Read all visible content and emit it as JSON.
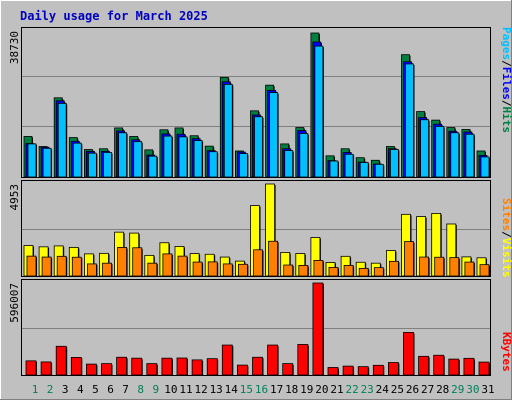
{
  "chart_data": {
    "type": "bar",
    "title": "Daily usage for March 2025",
    "days": [
      "1",
      "2",
      "3",
      "4",
      "5",
      "6",
      "7",
      "8",
      "9",
      "10",
      "11",
      "12",
      "13",
      "14",
      "15",
      "16",
      "17",
      "18",
      "19",
      "20",
      "21",
      "22",
      "23",
      "24",
      "25",
      "26",
      "27",
      "28",
      "29",
      "30",
      "31"
    ],
    "weekend_days": [
      "1",
      "2",
      "8",
      "9",
      "15",
      "16",
      "22",
      "23",
      "29",
      "30"
    ],
    "panels": [
      {
        "name": "traffic",
        "ymax_label": "38730",
        "ymax": 38730,
        "side_labels": [
          "Pages",
          "/",
          "Files",
          "/",
          "Hits"
        ],
        "series": [
          {
            "name": "Hits",
            "color": "#008040",
            "values": [
              10900,
              8200,
              21300,
              10600,
              7400,
              7600,
              13200,
              10900,
              7300,
              12700,
              13200,
              11100,
              8300,
              26800,
              7000,
              17800,
              24700,
              8900,
              13300,
              38730,
              5700,
              7600,
              5200,
              4500,
              8200,
              32900,
              17600,
              15300,
              13300,
              12800,
              7000
            ]
          },
          {
            "name": "Files",
            "color": "#0000FF",
            "values": [
              9000,
              8000,
              20500,
              9600,
              6900,
              6900,
              12400,
              10000,
              5900,
              11600,
              11500,
              10300,
              7100,
              25600,
              6700,
              16700,
              23300,
              7600,
              12500,
              36300,
              4400,
              6600,
              4000,
              3500,
              7600,
              31000,
              16000,
              14200,
              12300,
              12100,
              5800
            ]
          },
          {
            "name": "Pages",
            "color": "#00C0FF",
            "values": [
              8900,
              7700,
              19800,
              9100,
              6400,
              6600,
              11900,
              9500,
              5600,
              11000,
              10800,
              9800,
              6800,
              24900,
              6300,
              16200,
              22700,
              7100,
              11700,
              35200,
              4300,
              6100,
              3900,
              3400,
              7400,
              30400,
              15400,
              13600,
              11900,
              11500,
              5400
            ]
          }
        ]
      },
      {
        "name": "visits",
        "ymax_label": "4953",
        "ymax": 4953,
        "side_labels": [
          "Sites",
          "/",
          "Visits"
        ],
        "series": [
          {
            "name": "Visits",
            "color": "#FFFF00",
            "values": [
              1640,
              1570,
              1620,
              1540,
              1190,
              1220,
              2360,
              2310,
              1110,
              1790,
              1590,
              1210,
              1170,
              1020,
              800,
              3790,
              4953,
              1270,
              1210,
              2070,
              730,
              1060,
              740,
              690,
              1370,
              3320,
              3200,
              3370,
              2800,
              1030,
              980
            ]
          },
          {
            "name": "Sites",
            "color": "#FF8000",
            "values": [
              1070,
              1020,
              1060,
              1010,
              650,
              690,
              1540,
              1520,
              690,
              1190,
              1070,
              750,
              760,
              650,
              630,
              1410,
              1870,
              590,
              570,
              840,
              460,
              570,
              410,
              450,
              790,
              1850,
              1020,
              1010,
              990,
              750,
              610
            ]
          }
        ]
      },
      {
        "name": "volume",
        "ymax_label": "596007",
        "ymax": 596007,
        "side_labels": [
          "KBytes"
        ],
        "series": [
          {
            "name": "KBytes",
            "color": "#FF0000",
            "values": [
              91700,
              84700,
              186000,
              114000,
              70600,
              73800,
              115000,
              109000,
              73800,
              109000,
              110000,
              97900,
              106000,
              194000,
              64100,
              115000,
              194000,
              74000,
              198000,
              596007,
              48700,
              57600,
              54200,
              62900,
              80800,
              276000,
              121000,
              128000,
              103000,
              108000,
              83700
            ]
          }
        ]
      }
    ]
  }
}
